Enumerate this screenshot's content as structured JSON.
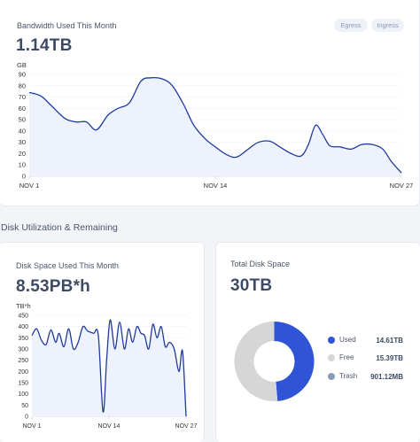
{
  "bandwidth": {
    "title": "Bandwidth Used This Month",
    "value": "1.14TB",
    "toggle_egress": "Egress",
    "toggle_ingress": "Ingress",
    "unit": "GB"
  },
  "section_title": "Disk Utilization & Remaining",
  "disk_space": {
    "title": "Disk Space Used This Month",
    "value": "8.53PB*h",
    "unit": "TB*h"
  },
  "total_disk": {
    "title": "Total Disk Space",
    "value": "30TB",
    "legend": [
      {
        "label": "Used",
        "value": "14.61TB",
        "color": "#2f54d6"
      },
      {
        "label": "Free",
        "value": "15.39TB",
        "color": "#d6d6d6"
      },
      {
        "label": "Trash",
        "value": "901.12MB",
        "color": "#8a9bb5"
      }
    ]
  },
  "chart_data": [
    {
      "type": "area",
      "ylabel": "GB",
      "ylim": [
        0,
        90
      ],
      "yticks": [
        0,
        10,
        20,
        30,
        40,
        50,
        60,
        70,
        80,
        90
      ],
      "xlim": [
        1,
        27
      ],
      "xtick_labels": [
        "NOV 1",
        "NOV 14",
        "NOV 27"
      ],
      "xtick_values": [
        1,
        14,
        27
      ],
      "x": [
        1,
        1.8,
        2.5,
        3.5,
        4.3,
        5,
        5.7,
        6.5,
        7.2,
        8,
        8.8,
        9.5,
        10.3,
        11,
        11.8,
        12.5,
        13.3,
        14,
        14.8,
        15.5,
        16.3,
        17,
        17.8,
        18.5,
        19.3,
        20,
        20.5,
        21,
        21.5,
        22,
        22.7,
        23.5,
        24.2,
        25,
        25.7,
        26.3,
        27
      ],
      "y": [
        74,
        71,
        63,
        51,
        48,
        48,
        41,
        54,
        60,
        65,
        84,
        87,
        86,
        80,
        63,
        45,
        33,
        26,
        19,
        17,
        24,
        30,
        31,
        26,
        20,
        18,
        28,
        45,
        37,
        27,
        26,
        24,
        28,
        28,
        24,
        13,
        3
      ],
      "line_color": "#1f3b9c",
      "fill_color": "#eef2fc",
      "grid": true
    },
    {
      "type": "area",
      "ylabel": "TB*h",
      "ylim": [
        0,
        450
      ],
      "yticks": [
        0,
        50,
        100,
        150,
        200,
        250,
        300,
        350,
        400,
        450
      ],
      "xlim": [
        1,
        27
      ],
      "xtick_labels": [
        "NOV 1",
        "NOV 14",
        "NOV 27"
      ],
      "xtick_values": [
        1,
        14,
        27
      ],
      "x": [
        1,
        1.8,
        2.6,
        3.4,
        4.2,
        5,
        5.6,
        6.4,
        7.2,
        8,
        8.8,
        9.6,
        10.4,
        11.4,
        12.2,
        13,
        13.6,
        14.2,
        15,
        15.8,
        16.6,
        17.3,
        18,
        18.7,
        19.4,
        20,
        20.7,
        21.4,
        22.1,
        22.8,
        23.5,
        24.2,
        25,
        25.8,
        26.4,
        27
      ],
      "y": [
        360,
        390,
        340,
        320,
        385,
        330,
        370,
        310,
        390,
        300,
        330,
        400,
        380,
        370,
        360,
        20,
        250,
        430,
        300,
        420,
        300,
        390,
        330,
        400,
        370,
        360,
        300,
        410,
        350,
        400,
        310,
        330,
        300,
        200,
        290,
        0
      ],
      "line_color": "#1f3b9c",
      "fill_color": "#eef2fc",
      "grid": true
    },
    {
      "type": "pie",
      "labels": [
        "Used",
        "Free",
        "Trash"
      ],
      "values": [
        14.61,
        15.39,
        0.0009
      ],
      "colors": [
        "#2f54d6",
        "#d6d6d6",
        "#8a9bb5"
      ],
      "donut": true
    }
  ]
}
